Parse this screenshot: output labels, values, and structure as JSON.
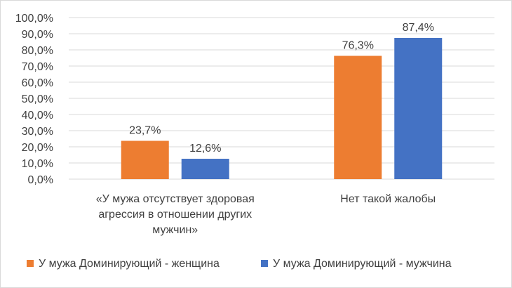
{
  "chart_data": {
    "type": "bar",
    "title": "",
    "xlabel": "",
    "ylabel": "",
    "ylim": [
      0,
      100
    ],
    "ytick_step": 10,
    "ytick_format": "0,0%",
    "grid": true,
    "legend_position": "bottom",
    "categories": [
      [
        "«У мужа отсутствует здоровая",
        "агрессия в отношении других",
        "мужчин»"
      ],
      [
        "Нет такой жалобы"
      ]
    ],
    "series": [
      {
        "name": "У мужа Доминирующий - женщина",
        "color": "#ED7D31",
        "values": [
          23.7,
          76.3
        ],
        "labels": [
          "23,7%",
          "76,3%"
        ]
      },
      {
        "name": "У мужа Доминирующий - мужчина",
        "color": "#4472C4",
        "values": [
          12.6,
          87.4
        ],
        "labels": [
          "12,6%",
          "87,4%"
        ]
      }
    ],
    "yticks": [
      "0,0%",
      "10,0%",
      "20,0%",
      "30,0%",
      "40,0%",
      "50,0%",
      "60,0%",
      "70,0%",
      "80,0%",
      "90,0%",
      "100,0%"
    ]
  }
}
